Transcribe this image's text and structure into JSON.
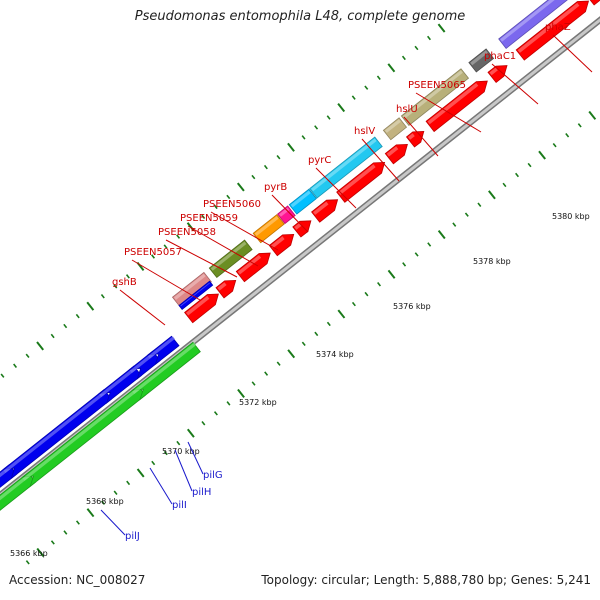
{
  "title": "Pseudomonas entomophila L48, complete genome",
  "accession": "Accession: NC_008027",
  "summary": "Topology: circular; Length: 5,888,780 bp; Genes: 5,241",
  "ticks": [
    {
      "label": "5366 kbp"
    },
    {
      "label": "5368 kbp"
    },
    {
      "label": "5370 kbp"
    },
    {
      "label": "5372 kbp"
    },
    {
      "label": "5374 kbp"
    },
    {
      "label": "5376 kbp"
    },
    {
      "label": "5378 kbp"
    },
    {
      "label": "5380 kbp"
    }
  ],
  "genes": [
    {
      "name": "gshB",
      "color": "#cc0000"
    },
    {
      "name": "PSEEN5057",
      "color": "#cc0000"
    },
    {
      "name": "PSEEN5058",
      "color": "#cc0000"
    },
    {
      "name": "PSEEN5059",
      "color": "#cc0000"
    },
    {
      "name": "PSEEN5060",
      "color": "#cc0000"
    },
    {
      "name": "pyrB",
      "color": "#cc0000"
    },
    {
      "name": "pyrC",
      "color": "#cc0000"
    },
    {
      "name": "hslV",
      "color": "#cc0000"
    },
    {
      "name": "hslU",
      "color": "#cc0000"
    },
    {
      "name": "PSEEN5065",
      "color": "#cc0000"
    },
    {
      "name": "phaC1",
      "color": "#cc0000"
    },
    {
      "name": "phaZ",
      "color": "#cc0000"
    },
    {
      "name": "pilJ",
      "color": "#1a1acc"
    },
    {
      "name": "pilI",
      "color": "#1a1acc"
    },
    {
      "name": "pilH",
      "color": "#1a1acc"
    },
    {
      "name": "pilG",
      "color": "#1a1acc"
    }
  ],
  "colors": {
    "forward_cds": "#ff0000",
    "reverse_blue": "#0000ee",
    "reverse_green": "#22cc22",
    "backbone": "#999999",
    "tick": "#1a7a1a"
  }
}
